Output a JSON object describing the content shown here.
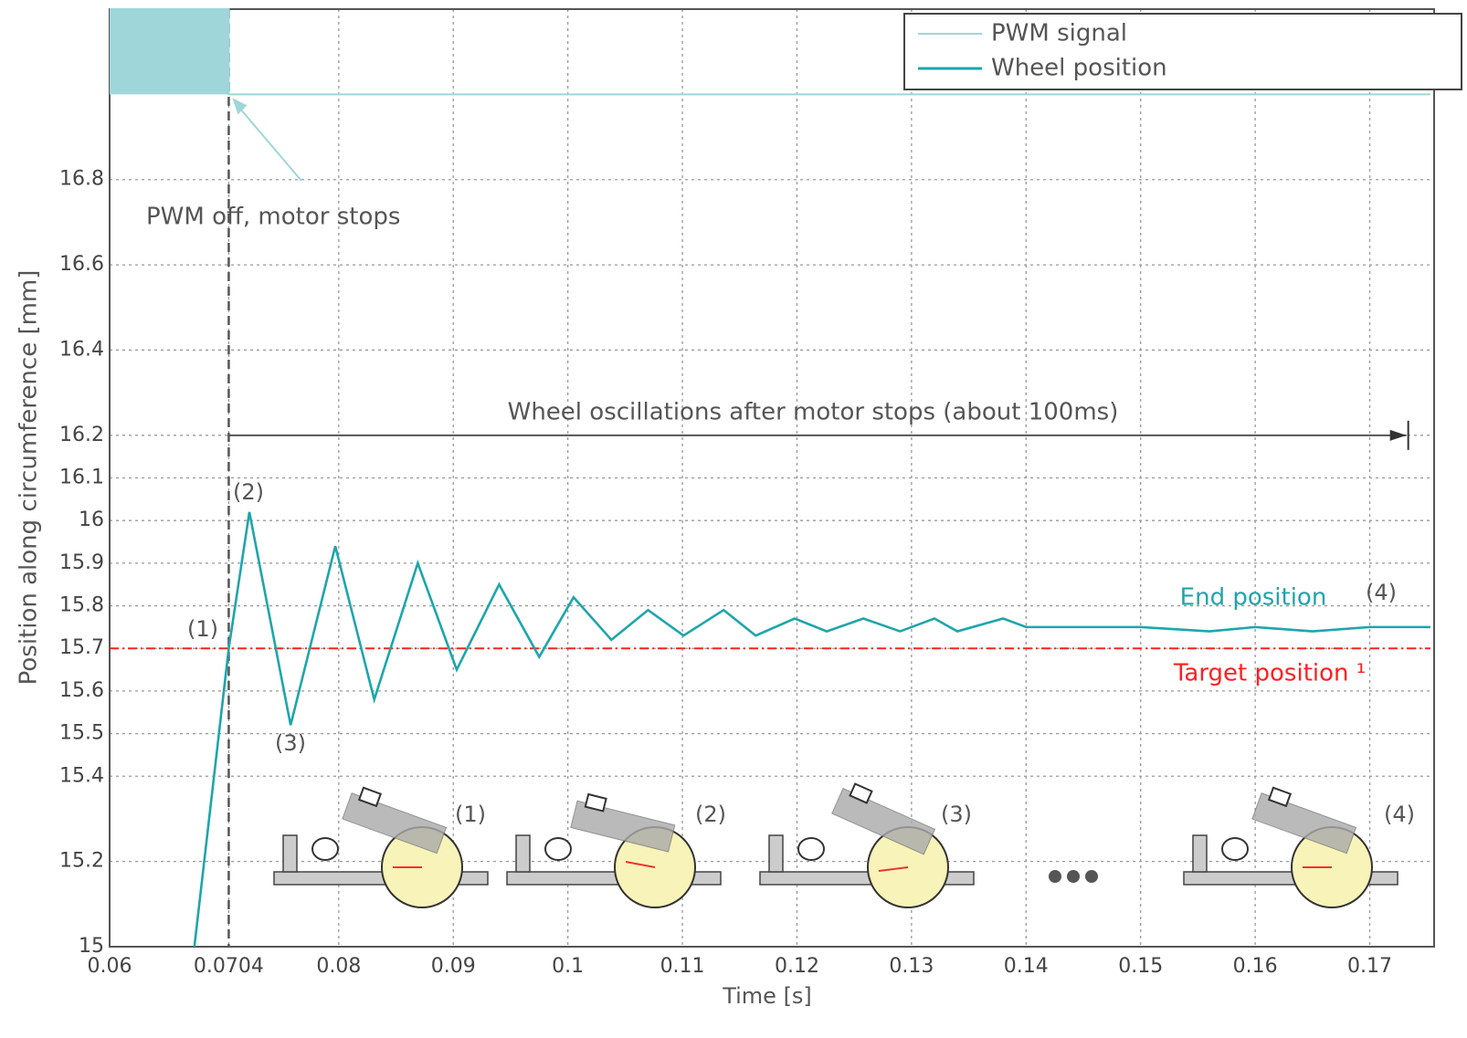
{
  "chart_data": {
    "type": "line",
    "xlabel": "Time [s]",
    "ylabel": "Position along circumference [mm]",
    "xlim": [
      0.06,
      0.1753
    ],
    "ylim": [
      15,
      17.2
    ],
    "xticks": [
      0.06,
      0.0704,
      0.08,
      0.09,
      0.1,
      0.11,
      0.12,
      0.13,
      0.14,
      0.15,
      0.16,
      0.17
    ],
    "yticks": [
      15,
      15.2,
      15.4,
      15.5,
      15.6,
      15.7,
      15.8,
      15.9,
      16,
      16.1,
      16.2,
      16.4,
      16.6,
      16.8
    ],
    "grid": true,
    "legend": "upper right",
    "series": [
      {
        "name": "PWM signal",
        "color": "#9fd6d9",
        "fill": true,
        "x": [
          0.06,
          0.0704,
          0.0704,
          0.1753
        ],
        "values": [
          17.2,
          17.2,
          17.0,
          17.0
        ]
      },
      {
        "name": "Wheel position",
        "color": "#1ea5ab",
        "x": [
          0.0674,
          0.0704,
          0.0722,
          0.0758,
          0.0797,
          0.0831,
          0.0869,
          0.0903,
          0.094,
          0.0975,
          0.1005,
          0.1038,
          0.107,
          0.1101,
          0.1136,
          0.1164,
          0.1198,
          0.1226,
          0.1258,
          0.129,
          0.132,
          0.134,
          0.138,
          0.14,
          0.15,
          0.156,
          0.16,
          0.165,
          0.17,
          0.1753
        ],
        "values": [
          15,
          15.7,
          16.02,
          15.52,
          15.94,
          15.58,
          15.9,
          15.65,
          15.85,
          15.68,
          15.82,
          15.72,
          15.79,
          15.73,
          15.79,
          15.73,
          15.77,
          15.74,
          15.77,
          15.74,
          15.77,
          15.74,
          15.77,
          15.75,
          15.75,
          15.74,
          15.75,
          15.74,
          15.75,
          15.75
        ]
      }
    ],
    "target": {
      "value": 15.7,
      "label": "Target position ¹",
      "color": "#ff2020"
    },
    "pwm_off": {
      "text": "PWM off, motor stops",
      "x": 0.0704,
      "y": 17.0
    },
    "span": {
      "text": "Wheel oscillations after motor stops (about 100ms)",
      "x": [
        0.0704,
        0.1732
      ],
      "y": 16.2
    },
    "point_labels": [
      "(1)",
      "(2)",
      "(3)"
    ],
    "end_label": "End position",
    "end_marker": "(4)",
    "illustration_labels": [
      "(1)",
      "(2)",
      "(3)",
      "(4)"
    ]
  }
}
